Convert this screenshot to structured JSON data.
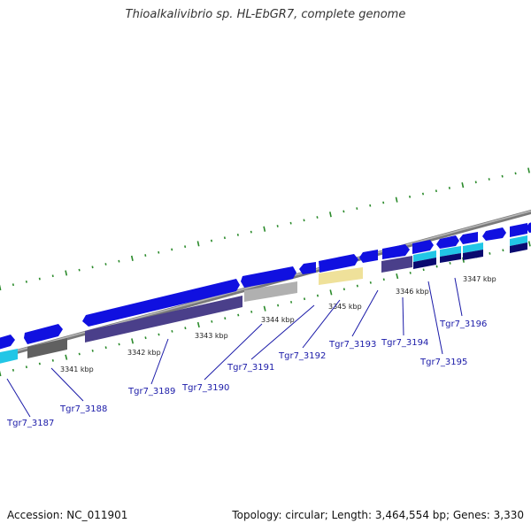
{
  "title": "Thioalkalivibrio sp. HL-EbGR7, complete genome",
  "footer": {
    "accession": "Accession: NC_011901",
    "summary": "Topology: circular; Length: 3,464,554 bp; Genes: 3,330"
  },
  "ticks": [
    "3341 kbp",
    "3342 kbp",
    "3343 kbp",
    "3344 kbp",
    "3345 kbp",
    "3346 kbp",
    "3347 kbp"
  ],
  "genes": [
    "Tgr7_3187",
    "Tgr7_3188",
    "Tgr7_3189",
    "Tgr7_3190",
    "Tgr7_3191",
    "Tgr7_3192",
    "Tgr7_3193",
    "Tgr7_3194",
    "Tgr7_3195",
    "Tgr7_3196"
  ],
  "colors": {
    "forward_cds": "#1010e0",
    "reverse_cds": "#4a3f8a",
    "cyan_feature": "#22c6e6",
    "grey_feature": "#b0b0b0",
    "dark_grey_feature": "#606060",
    "yellow_feature": "#efe19a",
    "backbone": "#8a8a8a",
    "gc_dots": "#2a8a2a"
  }
}
